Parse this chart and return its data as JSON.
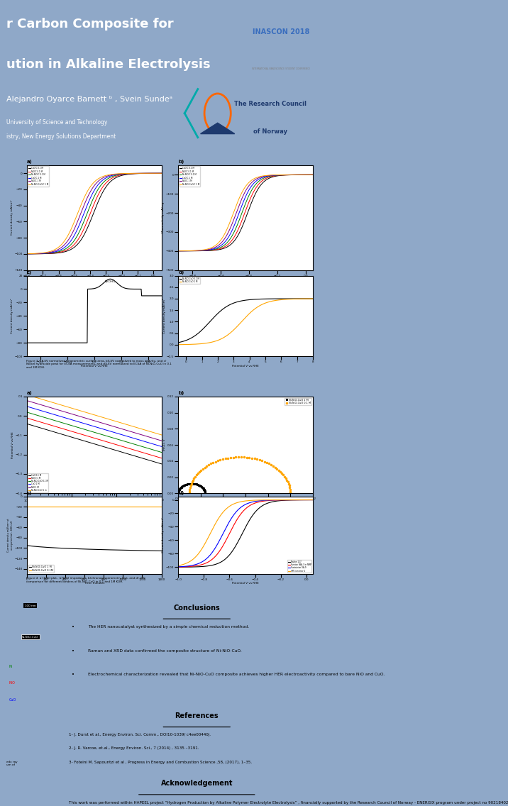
{
  "title_line1": "r Carbon Composite for",
  "title_line2": "ution in Alkaline Electrolysis",
  "authors": "Alejandro Oyarce Barnett ᵇ , Svein Sundeᵃ",
  "affil1": "University of Science and Technology",
  "affil2": "istry, New Energy Solutions Department",
  "header_bg": "#3A6EBE",
  "body_bg": "#8FA8C8",
  "white_panel_bg": "#E8EEF5",
  "fig3_caption": "Figure 3  a)LSV normalized to geometric surface area, b)LSV normalized to mass activity, and c)\nNickel hydroxide peak for ECSA measurements, and d)LSV normalized to ECSA of Ni-NiO-CuO in 0.1\nand 1M KOH.",
  "fig4_caption": "Figure 4  a) Tafel plot,  b)Tafel impedance, b)chronoamperometry test, and d) LSV\ncomparison for different binders of Ni-NiO-CuO in 0.1 and 1M KOH.",
  "conclusions_title": "Conclusions",
  "conclusions": [
    "The HER nanocatalyst synthesized by a simple chemical reduction method.",
    "Raman and XRD data confirmed the composite structure of Ni-NiO-CuO.",
    "Electrochemical characterization revealed that Ni-NiO-CuO composite achieves higher HER electroactivity compared to bare NiO and CuO."
  ],
  "references_title": "References",
  "references": [
    "1- J. Durst et al., Energy Environ. Sci. Comm., DOI10-1039/ c4ee00440j.",
    "2- J. R. Varcoe, et.al., Energy Environ. Sci., 7 (2014) , 3135 –3191.",
    "3- Foteini M. Sapountzi et al , Progress in Energy and Combustion Science ,58, (2017), 1–35."
  ],
  "ack_title": "Acknowledgement",
  "ack_text": "This work was performed within HAPEEL project “Hydrogen Production by Alkaline Polymer Electrolyte Electrolysis” , financially supported by the Research Council of Norway - ENERGIX program under project no 90218402"
}
